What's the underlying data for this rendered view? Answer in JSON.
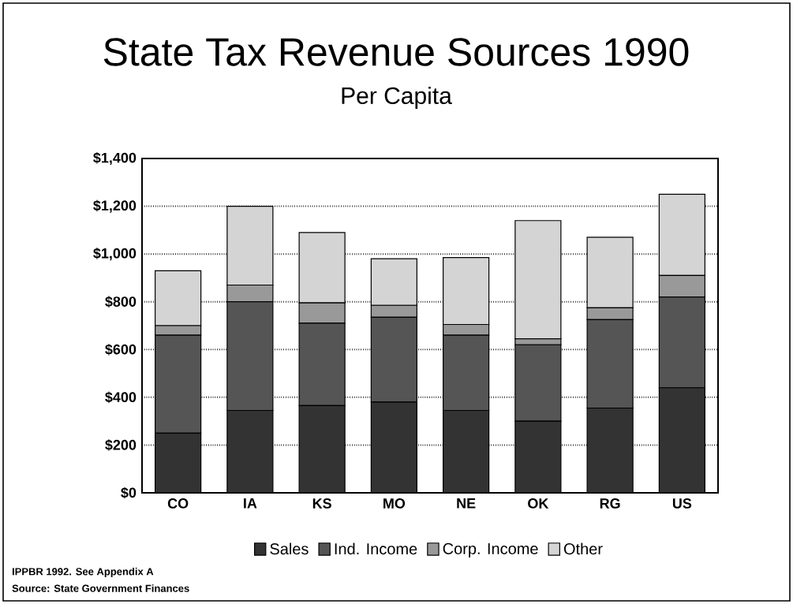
{
  "chart_data": {
    "type": "bar",
    "title": "State Tax Revenue Sources 1990",
    "subtitle": "Per Capita",
    "stacked": true,
    "categories": [
      "CO",
      "IA",
      "KS",
      "MO",
      "NE",
      "OK",
      "RG",
      "US"
    ],
    "series": [
      {
        "name": "Sales",
        "color": "#333333",
        "values": [
          250,
          345,
          365,
          380,
          345,
          300,
          355,
          440
        ]
      },
      {
        "name": "Ind. Income",
        "color": "#555555",
        "values": [
          410,
          455,
          345,
          355,
          315,
          320,
          370,
          380
        ]
      },
      {
        "name": "Corp. Income",
        "color": "#999999",
        "values": [
          40,
          70,
          85,
          50,
          45,
          25,
          50,
          90
        ]
      },
      {
        "name": "Other",
        "color": "#d4d4d4",
        "values": [
          230,
          330,
          295,
          195,
          280,
          495,
          295,
          340
        ]
      }
    ],
    "ylim": [
      0,
      1400
    ],
    "yticks": [
      {
        "value": 0,
        "label": "$0"
      },
      {
        "value": 200,
        "label": "$200"
      },
      {
        "value": 400,
        "label": "$400"
      },
      {
        "value": 600,
        "label": "$600"
      },
      {
        "value": 800,
        "label": "$800"
      },
      {
        "value": 1000,
        "label": "$1,000"
      },
      {
        "value": 1200,
        "label": "$1,200"
      },
      {
        "value": 1400,
        "label": "$1,400"
      }
    ],
    "grid": "y",
    "line_style": "dotted",
    "legend": "bottom",
    "annotations": [
      "IPPBR 1992.  See Appendix A",
      "Source:  State Government Finances"
    ]
  }
}
